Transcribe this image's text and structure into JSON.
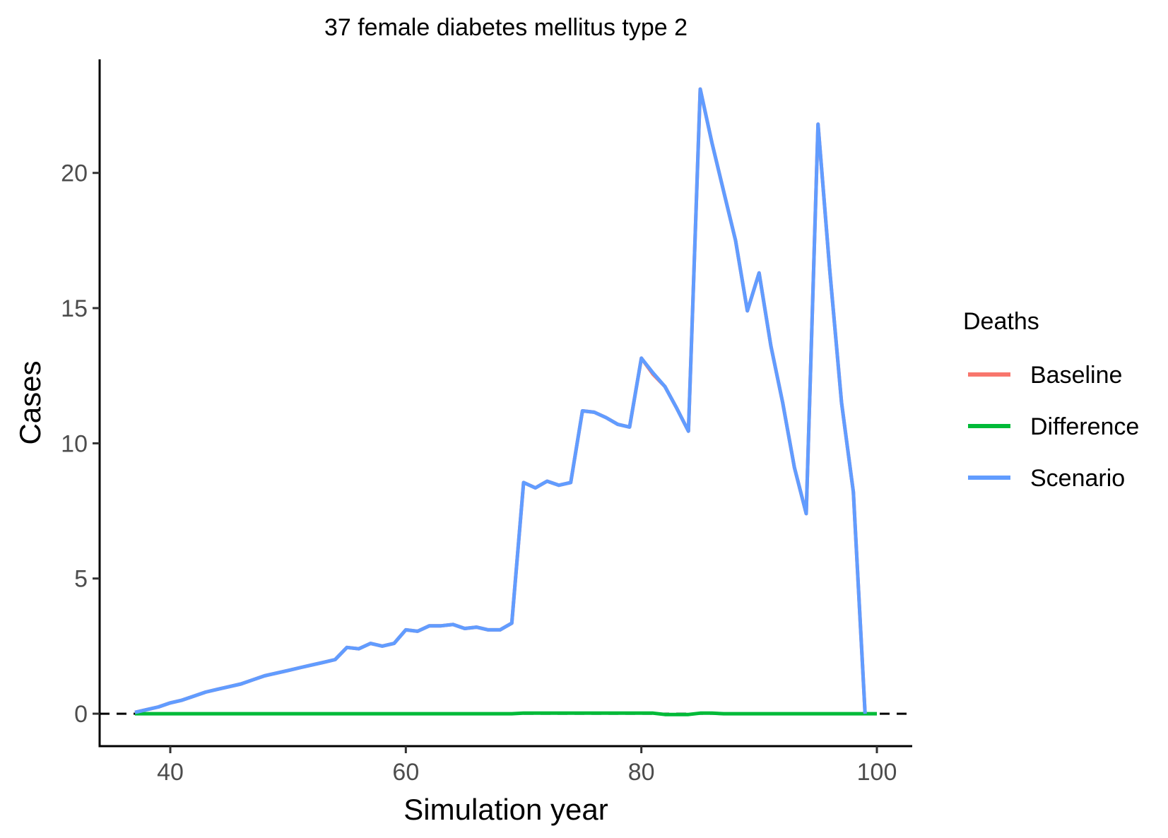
{
  "chart_data": {
    "type": "line",
    "title": "37 female diabetes mellitus type 2",
    "xlabel": "Simulation year",
    "ylabel": "Cases",
    "xlim": [
      34,
      103
    ],
    "ylim": [
      -1.2,
      24.2
    ],
    "x_ticks": [
      40,
      60,
      80,
      100
    ],
    "y_ticks": [
      0,
      5,
      10,
      15,
      20
    ],
    "x_tick_labels": [
      "40",
      "60",
      "80",
      "100"
    ],
    "y_tick_labels": [
      "0",
      "5",
      "10",
      "15",
      "20"
    ],
    "grid": false,
    "reference_line": {
      "y": 0,
      "style": "dashed",
      "color": "#000000"
    },
    "legend": {
      "title": "Deaths",
      "position": "right"
    },
    "series": [
      {
        "name": "Baseline",
        "color": "#F8766D",
        "x": [
          37,
          38,
          39,
          40,
          41,
          42,
          43,
          44,
          45,
          46,
          47,
          48,
          49,
          50,
          51,
          52,
          53,
          54,
          55,
          56,
          57,
          58,
          59,
          60,
          61,
          62,
          63,
          64,
          65,
          66,
          67,
          68,
          69,
          70,
          71,
          72,
          73,
          74,
          75,
          76,
          77,
          78,
          79,
          80,
          81,
          82,
          83,
          84,
          85,
          86,
          87,
          88,
          89,
          90,
          91,
          92,
          93,
          94,
          95,
          96,
          97,
          98,
          99
        ],
        "values": [
          0.05,
          0.15,
          0.25,
          0.4,
          0.5,
          0.65,
          0.8,
          0.9,
          1.0,
          1.1,
          1.25,
          1.4,
          1.5,
          1.6,
          1.7,
          1.8,
          1.9,
          2.0,
          2.45,
          2.4,
          2.6,
          2.5,
          2.6,
          3.1,
          3.05,
          3.25,
          3.25,
          3.3,
          3.15,
          3.2,
          3.1,
          3.1,
          3.35,
          8.55,
          8.35,
          8.6,
          8.45,
          8.55,
          11.2,
          11.15,
          10.95,
          10.7,
          10.6,
          13.15,
          12.55,
          12.1,
          11.3,
          10.45,
          23.1,
          21.1,
          19.3,
          17.5,
          14.9,
          16.3,
          13.6,
          11.5,
          9.1,
          7.4,
          21.8,
          16.4,
          11.5,
          8.2,
          0.0
        ]
      },
      {
        "name": "Difference",
        "color": "#00BA38",
        "x": [
          37,
          38,
          39,
          40,
          41,
          42,
          43,
          44,
          45,
          46,
          47,
          48,
          49,
          50,
          51,
          52,
          53,
          54,
          55,
          56,
          57,
          58,
          59,
          60,
          61,
          62,
          63,
          64,
          65,
          66,
          67,
          68,
          69,
          70,
          71,
          72,
          73,
          74,
          75,
          76,
          77,
          78,
          79,
          80,
          81,
          82,
          83,
          84,
          85,
          86,
          87,
          88,
          89,
          90,
          91,
          92,
          93,
          94,
          95,
          96,
          97,
          98,
          99,
          100
        ],
        "values": [
          0,
          0,
          0,
          0,
          0,
          0,
          0,
          0,
          0,
          0,
          0,
          0,
          0,
          0,
          0,
          0,
          0,
          0,
          0,
          0,
          0,
          0,
          0,
          0,
          0,
          0,
          0,
          0,
          0,
          0,
          0,
          0,
          0,
          0.02,
          0.02,
          0.02,
          0.02,
          0.02,
          0.02,
          0.02,
          0.02,
          0.02,
          0.02,
          0.02,
          0.02,
          -0.03,
          -0.03,
          -0.03,
          0.02,
          0.02,
          0,
          0,
          0,
          0,
          0,
          0,
          0,
          0,
          0,
          0,
          0,
          0,
          0,
          0
        ]
      },
      {
        "name": "Scenario",
        "color": "#619CFF",
        "x": [
          37,
          38,
          39,
          40,
          41,
          42,
          43,
          44,
          45,
          46,
          47,
          48,
          49,
          50,
          51,
          52,
          53,
          54,
          55,
          56,
          57,
          58,
          59,
          60,
          61,
          62,
          63,
          64,
          65,
          66,
          67,
          68,
          69,
          70,
          71,
          72,
          73,
          74,
          75,
          76,
          77,
          78,
          79,
          80,
          81,
          82,
          83,
          84,
          85,
          86,
          87,
          88,
          89,
          90,
          91,
          92,
          93,
          94,
          95,
          96,
          97,
          98,
          99
        ],
        "values": [
          0.05,
          0.15,
          0.25,
          0.4,
          0.5,
          0.65,
          0.8,
          0.9,
          1.0,
          1.1,
          1.25,
          1.4,
          1.5,
          1.6,
          1.7,
          1.8,
          1.9,
          2.0,
          2.45,
          2.4,
          2.6,
          2.5,
          2.6,
          3.1,
          3.05,
          3.25,
          3.25,
          3.3,
          3.15,
          3.2,
          3.1,
          3.1,
          3.35,
          8.55,
          8.35,
          8.6,
          8.45,
          8.55,
          11.2,
          11.15,
          10.95,
          10.7,
          10.6,
          13.15,
          12.6,
          12.1,
          11.3,
          10.45,
          23.1,
          21.1,
          19.3,
          17.5,
          14.9,
          16.3,
          13.6,
          11.5,
          9.1,
          7.4,
          21.8,
          16.4,
          11.5,
          8.2,
          0.0
        ]
      }
    ]
  }
}
